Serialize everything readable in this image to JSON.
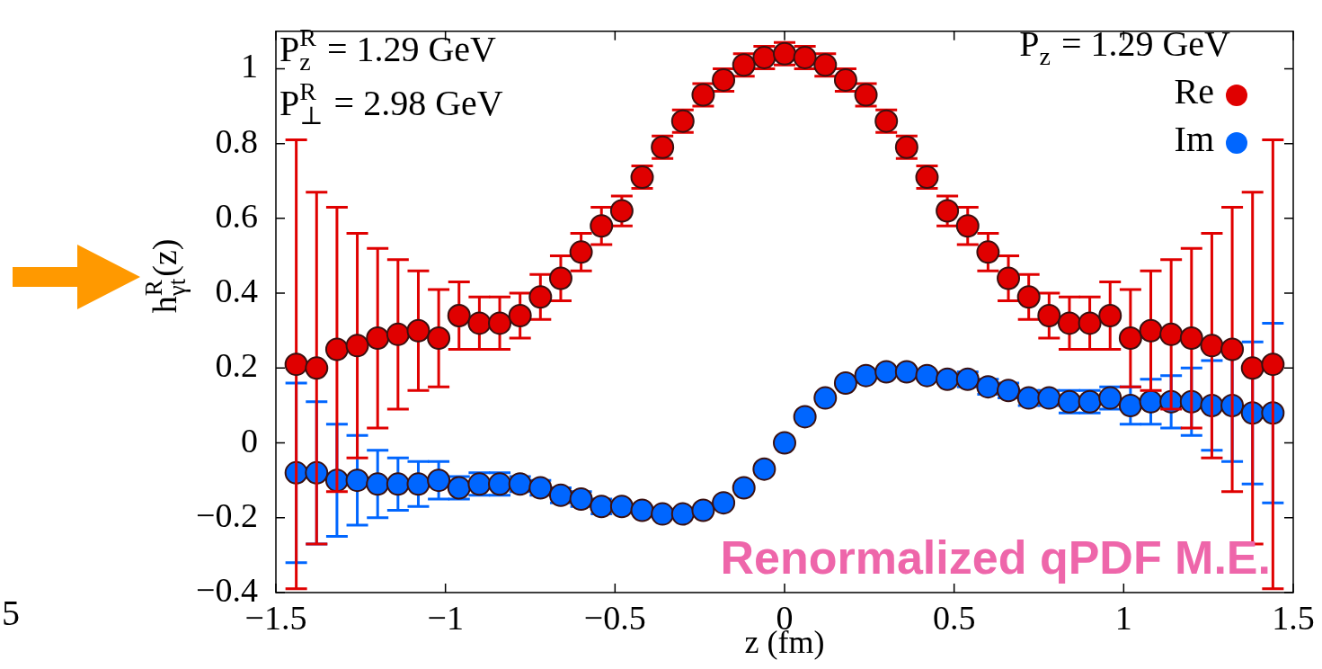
{
  "chart_data": {
    "type": "scatter",
    "xlabel": "z (fm)",
    "ylabel": "h$^{R}$$_{γt}$(z)",
    "x": [
      -1.44,
      -1.38,
      -1.32,
      -1.26,
      -1.2,
      -1.14,
      -1.08,
      -1.02,
      -0.96,
      -0.9,
      -0.84,
      -0.78,
      -0.72,
      -0.66,
      -0.6,
      -0.54,
      -0.48,
      -0.42,
      -0.36,
      -0.3,
      -0.24,
      -0.18,
      -0.12,
      -0.06,
      0,
      0.06,
      0.12,
      0.18,
      0.24,
      0.3,
      0.36,
      0.42,
      0.48,
      0.54,
      0.6,
      0.66,
      0.72,
      0.78,
      0.84,
      0.9,
      0.96,
      1.02,
      1.08,
      1.14,
      1.2,
      1.26,
      1.32,
      1.38,
      1.44
    ],
    "series": [
      {
        "name": "Re",
        "color": "#e00000",
        "values": [
          0.21,
          0.2,
          0.25,
          0.26,
          0.28,
          0.29,
          0.3,
          0.28,
          0.34,
          0.32,
          0.32,
          0.34,
          0.39,
          0.44,
          0.51,
          0.58,
          0.62,
          0.71,
          0.79,
          0.86,
          0.93,
          0.97,
          1.01,
          1.03,
          1.04,
          1.03,
          1.01,
          0.97,
          0.93,
          0.86,
          0.79,
          0.71,
          0.62,
          0.58,
          0.51,
          0.44,
          0.39,
          0.34,
          0.32,
          0.32,
          0.34,
          0.28,
          0.3,
          0.29,
          0.28,
          0.26,
          0.25,
          0.2,
          0.21
        ],
        "errors": [
          0.6,
          0.47,
          0.38,
          0.3,
          0.24,
          0.2,
          0.16,
          0.13,
          0.09,
          0.07,
          0.07,
          0.06,
          0.06,
          0.06,
          0.05,
          0.05,
          0.04,
          0.03,
          0.03,
          0.03,
          0.03,
          0.03,
          0.03,
          0.03,
          0.03,
          0.03,
          0.03,
          0.03,
          0.03,
          0.03,
          0.03,
          0.03,
          0.04,
          0.05,
          0.05,
          0.06,
          0.06,
          0.06,
          0.07,
          0.07,
          0.09,
          0.13,
          0.16,
          0.2,
          0.24,
          0.3,
          0.38,
          0.47,
          0.6
        ]
      },
      {
        "name": "Im",
        "color": "#0066ff",
        "values": [
          -0.08,
          -0.08,
          -0.1,
          -0.1,
          -0.11,
          -0.11,
          -0.11,
          -0.1,
          -0.12,
          -0.11,
          -0.11,
          -0.11,
          -0.12,
          -0.14,
          -0.15,
          -0.17,
          -0.17,
          -0.18,
          -0.19,
          -0.19,
          -0.18,
          -0.16,
          -0.12,
          -0.07,
          0,
          0.07,
          0.12,
          0.16,
          0.18,
          0.19,
          0.19,
          0.18,
          0.17,
          0.17,
          0.15,
          0.14,
          0.12,
          0.12,
          0.11,
          0.11,
          0.12,
          0.1,
          0.11,
          0.11,
          0.11,
          0.1,
          0.1,
          0.08,
          0.08
        ],
        "errors": [
          0.24,
          0.19,
          0.15,
          0.12,
          0.09,
          0.07,
          0.06,
          0.05,
          0.03,
          0.03,
          0.03,
          0.02,
          0.02,
          0.02,
          0.02,
          0.02,
          0.01,
          0.01,
          0.01,
          null,
          null,
          null,
          null,
          null,
          null,
          null,
          null,
          null,
          null,
          null,
          0.01,
          0.01,
          0.01,
          0.02,
          0.02,
          0.02,
          0.02,
          0.02,
          0.03,
          0.03,
          0.03,
          0.05,
          0.06,
          0.07,
          0.09,
          0.12,
          0.15,
          0.19,
          0.24
        ]
      }
    ],
    "xlim": [
      -1.5,
      1.5
    ],
    "xticks": [
      -1.5,
      -1,
      -0.5,
      0,
      0.5,
      1,
      1.5
    ],
    "ylim": [
      -0.4,
      1.1
    ],
    "yticks": [
      -0.4,
      -0.2,
      0,
      0.2,
      0.4,
      0.6,
      0.8,
      1
    ],
    "marker": "circle",
    "legend": "top right",
    "annotations": [
      "P$^{R}$$_{z}$ = 1.29 GeV",
      "P$^{R}$$_{⊥}$ = 2.98 GeV",
      "P$_{z}$ = 1.29 GeV",
      "Renormalized qPDF M.E.",
      "5"
    ]
  }
}
